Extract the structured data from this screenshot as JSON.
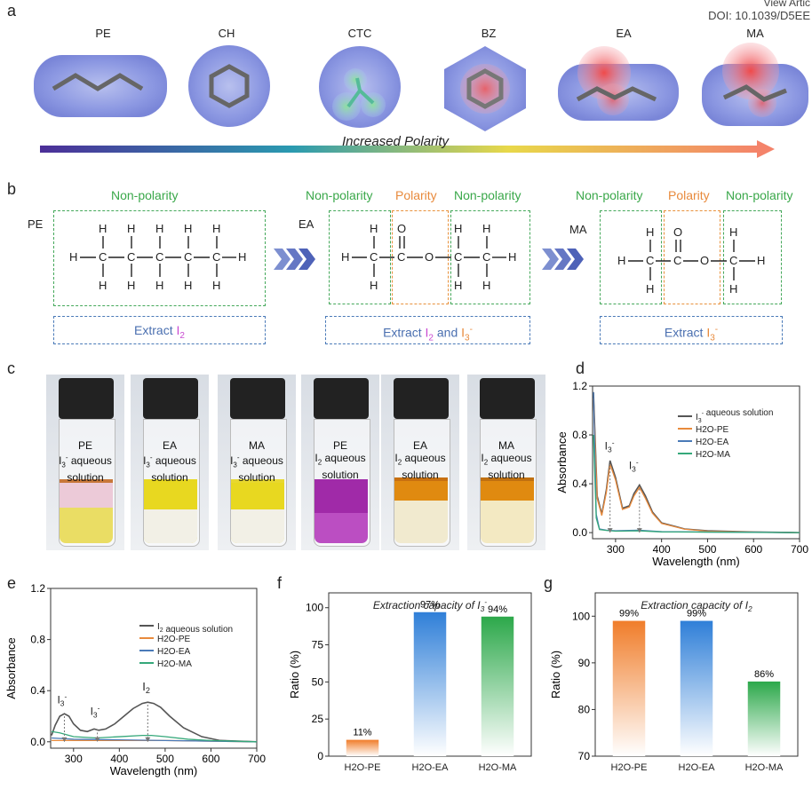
{
  "header": {
    "doi_line1": "View Artic",
    "doi_line2": "DOI: 10.1039/D5EE"
  },
  "panels": {
    "a": "a",
    "b": "b",
    "c": "c",
    "d": "d",
    "e": "e",
    "f": "f",
    "g": "g"
  },
  "panel_a": {
    "molecules": [
      "PE",
      "CH",
      "CTC",
      "BZ",
      "EA",
      "MA"
    ],
    "arrow_label": "Increased Polarity"
  },
  "panel_b": {
    "row_labels": [
      "PE",
      "EA",
      "MA"
    ],
    "non_polarity": "Non-polarity",
    "polarity": "Polarity",
    "extract_pe": {
      "prefix": "Extract ",
      "species": "I",
      "sub": "2"
    },
    "extract_ea": {
      "prefix": "Extract ",
      "s1": "I",
      "s1sub": "2",
      "mid": " and ",
      "s2": "I",
      "s2sup": "3",
      "s2sign": "-"
    },
    "extract_ma": {
      "prefix": "Extract ",
      "species": "I",
      "sup": "3",
      "sign": "-"
    }
  },
  "panel_c": {
    "vials": [
      {
        "top": "PE",
        "mid": "I3- aqueous",
        "bot": "solution",
        "sp": "I",
        "sub": "3",
        "sup": "-",
        "rest": " aqueous"
      },
      {
        "top": "EA",
        "mid": "I3- aqueous",
        "bot": "solution",
        "sp": "I",
        "sub": "3",
        "sup": "-",
        "rest": " aqueous"
      },
      {
        "top": "MA",
        "mid": "I3- aqueous",
        "bot": "solution",
        "sp": "I",
        "sub": "3",
        "sup": "-",
        "rest": " aqueous"
      },
      {
        "top": "PE",
        "mid": "I2 aqueous",
        "bot": "solution",
        "sp": "I",
        "sub": "2",
        "sup": "",
        "rest": " aqueous"
      },
      {
        "top": "EA",
        "mid": "I2 aqueous",
        "bot": "solution",
        "sp": "I",
        "sub": "2",
        "sup": "",
        "rest": " aqueous"
      },
      {
        "top": "MA",
        "mid": "I2 aqueous",
        "bot": "solution",
        "sp": "I",
        "sub": "2",
        "sup": "",
        "rest": " aqueous"
      }
    ]
  },
  "colors": {
    "green": "#3aa84a",
    "orange": "#e88a3c",
    "blue": "#4a7ab8",
    "gray": "#555555",
    "teal": "#35a87a"
  },
  "chart_data": [
    {
      "id": "d",
      "type": "line",
      "xlabel": "Wavelength (nm)",
      "ylabel": "Absorbance",
      "xlim": [
        250,
        700
      ],
      "ylim": [
        -0.05,
        1.2
      ],
      "xticks": [
        300,
        400,
        500,
        600,
        700
      ],
      "yticks": [
        0.0,
        0.4,
        0.8,
        1.2
      ],
      "legend": [
        "I3- aqueous solution",
        "H2O-PE",
        "H2O-EA",
        "H2O-MA"
      ],
      "legend_placement": "top-right",
      "annotations": [
        {
          "text": "I3-",
          "x": 288
        },
        {
          "text": "I3-",
          "x": 352
        }
      ],
      "series": [
        {
          "name": "I3- aqueous solution",
          "x": [
            252,
            260,
            270,
            280,
            288,
            300,
            315,
            330,
            340,
            352,
            365,
            380,
            400,
            450,
            500,
            600,
            700
          ],
          "y": [
            1.15,
            0.3,
            0.15,
            0.35,
            0.59,
            0.45,
            0.2,
            0.22,
            0.32,
            0.39,
            0.3,
            0.17,
            0.08,
            0.03,
            0.015,
            0.005,
            0.0
          ]
        },
        {
          "name": "H2O-PE",
          "x": [
            252,
            260,
            270,
            280,
            288,
            300,
            315,
            330,
            340,
            352,
            365,
            380,
            400,
            450,
            500,
            600,
            700
          ],
          "y": [
            1.1,
            0.28,
            0.14,
            0.33,
            0.56,
            0.43,
            0.19,
            0.21,
            0.3,
            0.37,
            0.28,
            0.16,
            0.075,
            0.028,
            0.012,
            0.004,
            0.0
          ]
        },
        {
          "name": "H2O-EA",
          "x": [
            252,
            258,
            265,
            280,
            300,
            350,
            400,
            500,
            600,
            700
          ],
          "y": [
            1.15,
            0.15,
            0.03,
            0.02,
            0.015,
            0.02,
            0.008,
            0.005,
            0.003,
            0.0
          ]
        },
        {
          "name": "H2O-MA",
          "x": [
            252,
            258,
            265,
            280,
            300,
            350,
            400,
            500,
            600,
            700
          ],
          "y": [
            0.8,
            0.12,
            0.025,
            0.018,
            0.012,
            0.015,
            0.006,
            0.004,
            0.002,
            0.0
          ]
        }
      ]
    },
    {
      "id": "e",
      "type": "line",
      "xlabel": "Wavelength (nm)",
      "ylabel": "Absorbance",
      "xlim": [
        250,
        700
      ],
      "ylim": [
        -0.05,
        1.2
      ],
      "xticks": [
        300,
        400,
        500,
        600,
        700
      ],
      "yticks": [
        0.0,
        0.4,
        0.8,
        1.2
      ],
      "legend": [
        "I2 aqueous solution",
        "H2O-PE",
        "H2O-EA",
        "H2O-MA"
      ],
      "legend_placement": "top-right",
      "annotations": [
        {
          "text": "I3-",
          "x": 280
        },
        {
          "text": "I3-",
          "x": 352
        },
        {
          "text": "I2",
          "x": 462
        }
      ],
      "series": [
        {
          "name": "I2 aqueous solution",
          "x": [
            252,
            260,
            270,
            280,
            290,
            300,
            315,
            330,
            345,
            355,
            370,
            390,
            410,
            430,
            450,
            462,
            475,
            490,
            510,
            540,
            580,
            620,
            700
          ],
          "y": [
            0.05,
            0.13,
            0.2,
            0.22,
            0.2,
            0.14,
            0.09,
            0.08,
            0.1,
            0.09,
            0.1,
            0.14,
            0.2,
            0.26,
            0.3,
            0.31,
            0.3,
            0.27,
            0.2,
            0.11,
            0.04,
            0.01,
            0.0
          ]
        },
        {
          "name": "H2O-PE",
          "x": [
            252,
            300,
            400,
            500,
            600,
            700
          ],
          "y": [
            0.01,
            0.01,
            0.01,
            0.01,
            0.005,
            0.0
          ]
        },
        {
          "name": "H2O-EA",
          "x": [
            252,
            300,
            400,
            500,
            600,
            700
          ],
          "y": [
            0.03,
            0.02,
            0.015,
            0.01,
            0.005,
            0.0
          ]
        },
        {
          "name": "H2O-MA",
          "x": [
            252,
            270,
            300,
            350,
            400,
            450,
            470,
            500,
            550,
            600,
            700
          ],
          "y": [
            0.08,
            0.07,
            0.04,
            0.03,
            0.04,
            0.05,
            0.05,
            0.04,
            0.02,
            0.01,
            0.0
          ]
        }
      ]
    },
    {
      "id": "f",
      "type": "bar",
      "title": "Extraction capacity of I3-",
      "categories": [
        "H2O-PE",
        "H2O-EA",
        "H2O-MA"
      ],
      "values": [
        11,
        97,
        94
      ],
      "labels": [
        "11%",
        "97%",
        "94%"
      ],
      "ylabel": "Ratio (%)",
      "ylim": [
        0,
        110
      ],
      "yticks": [
        0,
        25,
        50,
        75,
        100
      ],
      "colors": [
        "#f07d2a",
        "#2f7fd8",
        "#2ca84a"
      ]
    },
    {
      "id": "g",
      "type": "bar",
      "title": "Extraction capacity of I2",
      "categories": [
        "H2O-PE",
        "H2O-EA",
        "H2O-MA"
      ],
      "values": [
        99,
        99,
        86
      ],
      "labels": [
        "99%",
        "99%",
        "86%"
      ],
      "ylabel": "Ratio (%)",
      "ylim": [
        70,
        105
      ],
      "yticks": [
        70,
        80,
        90,
        100
      ],
      "colors": [
        "#f07d2a",
        "#2f7fd8",
        "#2ca84a"
      ]
    }
  ]
}
